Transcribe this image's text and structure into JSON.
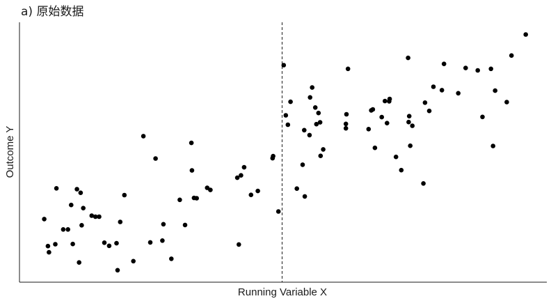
{
  "chart_data": {
    "type": "scatter",
    "title": "a) 原始数据",
    "xlabel": "Running Variable X",
    "ylabel": "Outcome Y",
    "xlim": [
      0,
      100
    ],
    "ylim": [
      0,
      100
    ],
    "grid": false,
    "axis_ticks": false,
    "cutoff_x": 49.8,
    "cutoff_style": "dashed",
    "point_color": "#000000",
    "points": [
      [
        4.7,
        24.3
      ],
      [
        5.4,
        13.9
      ],
      [
        5.6,
        11.5
      ],
      [
        6.8,
        14.6
      ],
      [
        7.0,
        36.1
      ],
      [
        8.3,
        20.3
      ],
      [
        9.2,
        20.3
      ],
      [
        9.8,
        29.7
      ],
      [
        10.1,
        14.7
      ],
      [
        10.9,
        35.8
      ],
      [
        11.3,
        7.6
      ],
      [
        11.6,
        34.4
      ],
      [
        11.8,
        21.9
      ],
      [
        12.1,
        28.5
      ],
      [
        13.7,
        25.6
      ],
      [
        14.4,
        25.2
      ],
      [
        15.1,
        25.2
      ],
      [
        16.1,
        15.2
      ],
      [
        17.0,
        14.0
      ],
      [
        18.4,
        15.0
      ],
      [
        18.6,
        4.6
      ],
      [
        19.1,
        23.2
      ],
      [
        19.9,
        33.5
      ],
      [
        21.6,
        8.1
      ],
      [
        23.5,
        56.2
      ],
      [
        24.8,
        15.3
      ],
      [
        25.8,
        47.6
      ],
      [
        27.1,
        16.0
      ],
      [
        27.3,
        22.3
      ],
      [
        28.8,
        9.0
      ],
      [
        30.4,
        31.7
      ],
      [
        31.4,
        22.0
      ],
      [
        32.6,
        53.6
      ],
      [
        32.7,
        43.0
      ],
      [
        33.1,
        32.4
      ],
      [
        33.6,
        32.3
      ],
      [
        35.6,
        36.3
      ],
      [
        36.2,
        35.5
      ],
      [
        41.3,
        40.2
      ],
      [
        41.6,
        14.5
      ],
      [
        42.0,
        41.1
      ],
      [
        42.6,
        44.2
      ],
      [
        43.9,
        33.6
      ],
      [
        45.2,
        35.1
      ],
      [
        48.0,
        47.7
      ],
      [
        48.1,
        48.5
      ],
      [
        49.1,
        27.2
      ],
      [
        50.1,
        83.5
      ],
      [
        50.5,
        64.2
      ],
      [
        50.9,
        60.6
      ],
      [
        51.4,
        69.4
      ],
      [
        52.6,
        36.0
      ],
      [
        53.7,
        45.2
      ],
      [
        54.0,
        58.5
      ],
      [
        54.1,
        33.0
      ],
      [
        55.0,
        56.6
      ],
      [
        55.1,
        71.1
      ],
      [
        55.5,
        74.9
      ],
      [
        56.1,
        67.2
      ],
      [
        56.3,
        60.8
      ],
      [
        56.7,
        65.1
      ],
      [
        57.0,
        61.5
      ],
      [
        57.1,
        48.6
      ],
      [
        57.6,
        51.1
      ],
      [
        61.9,
        59.2
      ],
      [
        61.9,
        60.9
      ],
      [
        62.0,
        64.6
      ],
      [
        62.3,
        82.1
      ],
      [
        66.2,
        58.9
      ],
      [
        66.7,
        66.1
      ],
      [
        67.0,
        66.5
      ],
      [
        67.4,
        51.7
      ],
      [
        68.7,
        63.5
      ],
      [
        69.3,
        69.7
      ],
      [
        69.7,
        61.2
      ],
      [
        70.1,
        69.6
      ],
      [
        70.2,
        70.5
      ],
      [
        71.4,
        48.2
      ],
      [
        72.4,
        43.1
      ],
      [
        73.7,
        86.3
      ],
      [
        73.8,
        61.6
      ],
      [
        73.9,
        63.9
      ],
      [
        74.1,
        52.5
      ],
      [
        74.5,
        60.2
      ],
      [
        76.6,
        38.0
      ],
      [
        76.9,
        69.1
      ],
      [
        77.7,
        65.9
      ],
      [
        78.5,
        75.2
      ],
      [
        80.1,
        73.9
      ],
      [
        80.5,
        84.0
      ],
      [
        83.2,
        72.7
      ],
      [
        84.6,
        82.4
      ],
      [
        86.9,
        81.5
      ],
      [
        87.8,
        63.6
      ],
      [
        89.4,
        82.1
      ],
      [
        89.8,
        52.4
      ],
      [
        90.2,
        73.7
      ],
      [
        92.4,
        69.3
      ],
      [
        93.3,
        87.2
      ],
      [
        96.0,
        95.3
      ]
    ]
  }
}
